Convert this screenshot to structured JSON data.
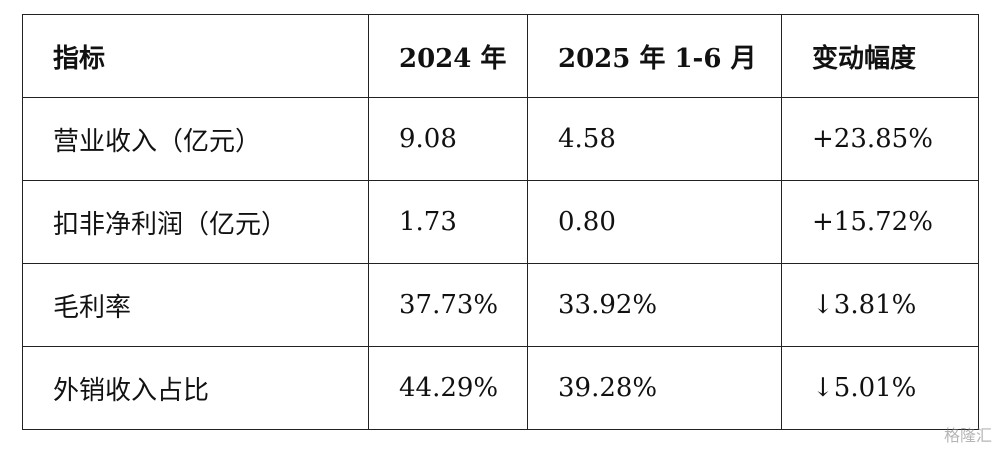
{
  "table": {
    "header": [
      "指标",
      "2024 年",
      "2025 年 1-6 月",
      "变动幅度"
    ],
    "rows": [
      [
        "营业收入（亿元）",
        "9.08",
        "4.58",
        "+23.85%"
      ],
      [
        "扣非净利润（亿元）",
        "1.73",
        "0.80",
        "+15.72%"
      ],
      [
        "毛利率",
        "37.73%",
        "33.92%",
        "↓3.81%"
      ],
      [
        "外销收入占比",
        "44.29%",
        "39.28%",
        "↓5.01%"
      ]
    ]
  },
  "watermark": "格隆汇"
}
